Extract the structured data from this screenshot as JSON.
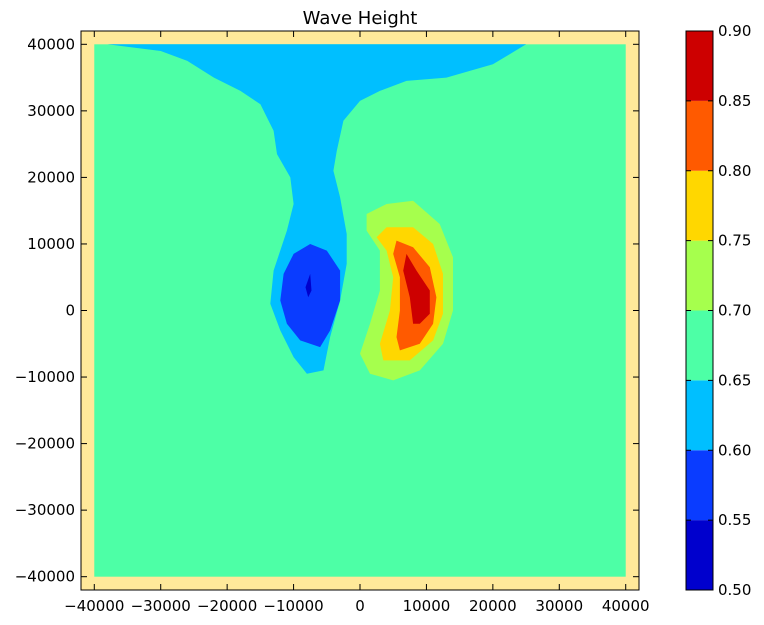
{
  "chart_data": {
    "type": "contourf",
    "title": "Wave Height",
    "xlabel": "",
    "ylabel": "",
    "xlim": [
      -42000,
      42000
    ],
    "ylim": [
      -42000,
      42000
    ],
    "x_ticks": [
      -40000,
      -30000,
      -20000,
      -10000,
      0,
      10000,
      20000,
      30000,
      40000
    ],
    "x_tick_labels": [
      "−40000",
      "−30000",
      "−20000",
      "−10000",
      "0",
      "10000",
      "20000",
      "30000",
      "40000"
    ],
    "y_ticks": [
      40000,
      30000,
      20000,
      10000,
      0,
      -10000,
      -20000,
      -30000,
      -40000
    ],
    "y_tick_labels": [
      "40000",
      "30000",
      "20000",
      "10000",
      "0",
      "−10000",
      "−20000",
      "−30000",
      "−40000"
    ],
    "domain_extent": {
      "x": [
        -40000,
        40000
      ],
      "y": [
        -40000,
        40000
      ]
    },
    "background_color": "#ffe99a",
    "grid": false,
    "colorbar": {
      "position": "right",
      "levels": [
        0.5,
        0.55,
        0.6,
        0.65,
        0.7,
        0.75,
        0.8,
        0.85,
        0.9
      ],
      "tick_labels": [
        "0.50",
        "0.55",
        "0.60",
        "0.65",
        "0.70",
        "0.75",
        "0.80",
        "0.85",
        "0.90"
      ],
      "colors": [
        "#0000cd",
        "#0a3cff",
        "#00bfff",
        "#4dffa6",
        "#a6ff4d",
        "#ffd700",
        "#ff5a00",
        "#cd0000"
      ]
    },
    "regions": [
      {
        "name": "band-0.60-0.65",
        "level_range": [
          0.6,
          0.65
        ],
        "color": "#00bfff",
        "outline": [
          [
            -38000,
            40000
          ],
          [
            25000,
            40000
          ],
          [
            20000,
            37000
          ],
          [
            13000,
            35000
          ],
          [
            7000,
            34500
          ],
          [
            3000,
            33000
          ],
          [
            0,
            31500
          ],
          [
            -2500,
            28500
          ],
          [
            -3500,
            24000
          ],
          [
            -4000,
            21000
          ],
          [
            -3000,
            17000
          ],
          [
            -2000,
            11500
          ],
          [
            -2000,
            7000
          ],
          [
            -3000,
            1500
          ],
          [
            -4500,
            -4000
          ],
          [
            -5500,
            -9000
          ],
          [
            -8000,
            -9500
          ],
          [
            -10000,
            -7000
          ],
          [
            -12000,
            -3000
          ],
          [
            -13500,
            1000
          ],
          [
            -13000,
            6000
          ],
          [
            -11000,
            12000
          ],
          [
            -10000,
            16000
          ],
          [
            -10500,
            20000
          ],
          [
            -12500,
            23500
          ],
          [
            -13000,
            27000
          ],
          [
            -15000,
            31000
          ],
          [
            -18000,
            33000
          ],
          [
            -22000,
            35000
          ],
          [
            -26000,
            37500
          ],
          [
            -30000,
            39000
          ]
        ]
      },
      {
        "name": "band-0.55-0.60",
        "level_range": [
          0.55,
          0.6
        ],
        "color": "#0a3cff",
        "outline": [
          [
            -7500,
            10000
          ],
          [
            -5000,
            9000
          ],
          [
            -3000,
            6000
          ],
          [
            -3000,
            1500
          ],
          [
            -4500,
            -3000
          ],
          [
            -6000,
            -5500
          ],
          [
            -9000,
            -4500
          ],
          [
            -11000,
            -2000
          ],
          [
            -12000,
            1500
          ],
          [
            -11500,
            5500
          ],
          [
            -10000,
            8500
          ]
        ]
      },
      {
        "name": "band-0.50-0.55",
        "level_range": [
          0.5,
          0.55
        ],
        "color": "#0000cd",
        "outline": [
          [
            -7500,
            5500
          ],
          [
            -7300,
            3000
          ],
          [
            -7800,
            2000
          ],
          [
            -8200,
            3500
          ]
        ]
      },
      {
        "name": "band-0.70-0.75",
        "level_range": [
          0.7,
          0.75
        ],
        "color": "#a6ff4d",
        "outline": [
          [
            4000,
            16000
          ],
          [
            8000,
            16500
          ],
          [
            12000,
            13000
          ],
          [
            14000,
            8000
          ],
          [
            14000,
            0
          ],
          [
            12500,
            -5000
          ],
          [
            9000,
            -9000
          ],
          [
            5000,
            -10500
          ],
          [
            1500,
            -9500
          ],
          [
            0,
            -6500
          ],
          [
            1500,
            -2000
          ],
          [
            3000,
            3000
          ],
          [
            3000,
            9000
          ],
          [
            1000,
            12000
          ],
          [
            1000,
            14500
          ]
        ]
      },
      {
        "name": "band-0.75-0.80",
        "level_range": [
          0.75,
          0.8
        ],
        "color": "#ffd700",
        "outline": [
          [
            4000,
            12500
          ],
          [
            8000,
            12500
          ],
          [
            11000,
            10000
          ],
          [
            12500,
            5500
          ],
          [
            12500,
            -500
          ],
          [
            11000,
            -4500
          ],
          [
            7500,
            -7500
          ],
          [
            3500,
            -7500
          ],
          [
            3000,
            -5000
          ],
          [
            4500,
            0
          ],
          [
            5000,
            5000
          ],
          [
            4000,
            9000
          ],
          [
            2500,
            11000
          ]
        ]
      },
      {
        "name": "band-0.80-0.85",
        "level_range": [
          0.8,
          0.85
        ],
        "color": "#ff5a00",
        "outline": [
          [
            5500,
            10500
          ],
          [
            8000,
            9500
          ],
          [
            10500,
            6500
          ],
          [
            11500,
            2000
          ],
          [
            11000,
            -2000
          ],
          [
            9000,
            -5000
          ],
          [
            6000,
            -6000
          ],
          [
            5500,
            -4000
          ],
          [
            6000,
            0
          ],
          [
            6000,
            5000
          ],
          [
            5000,
            8500
          ]
        ]
      },
      {
        "name": "band-0.85-0.90",
        "level_range": [
          0.85,
          0.9
        ],
        "color": "#cd0000",
        "outline": [
          [
            7000,
            8500
          ],
          [
            8500,
            6000
          ],
          [
            10500,
            3000
          ],
          [
            10500,
            -500
          ],
          [
            9000,
            -2000
          ],
          [
            8000,
            -2000
          ],
          [
            7500,
            2000
          ],
          [
            6500,
            6000
          ]
        ]
      }
    ]
  }
}
